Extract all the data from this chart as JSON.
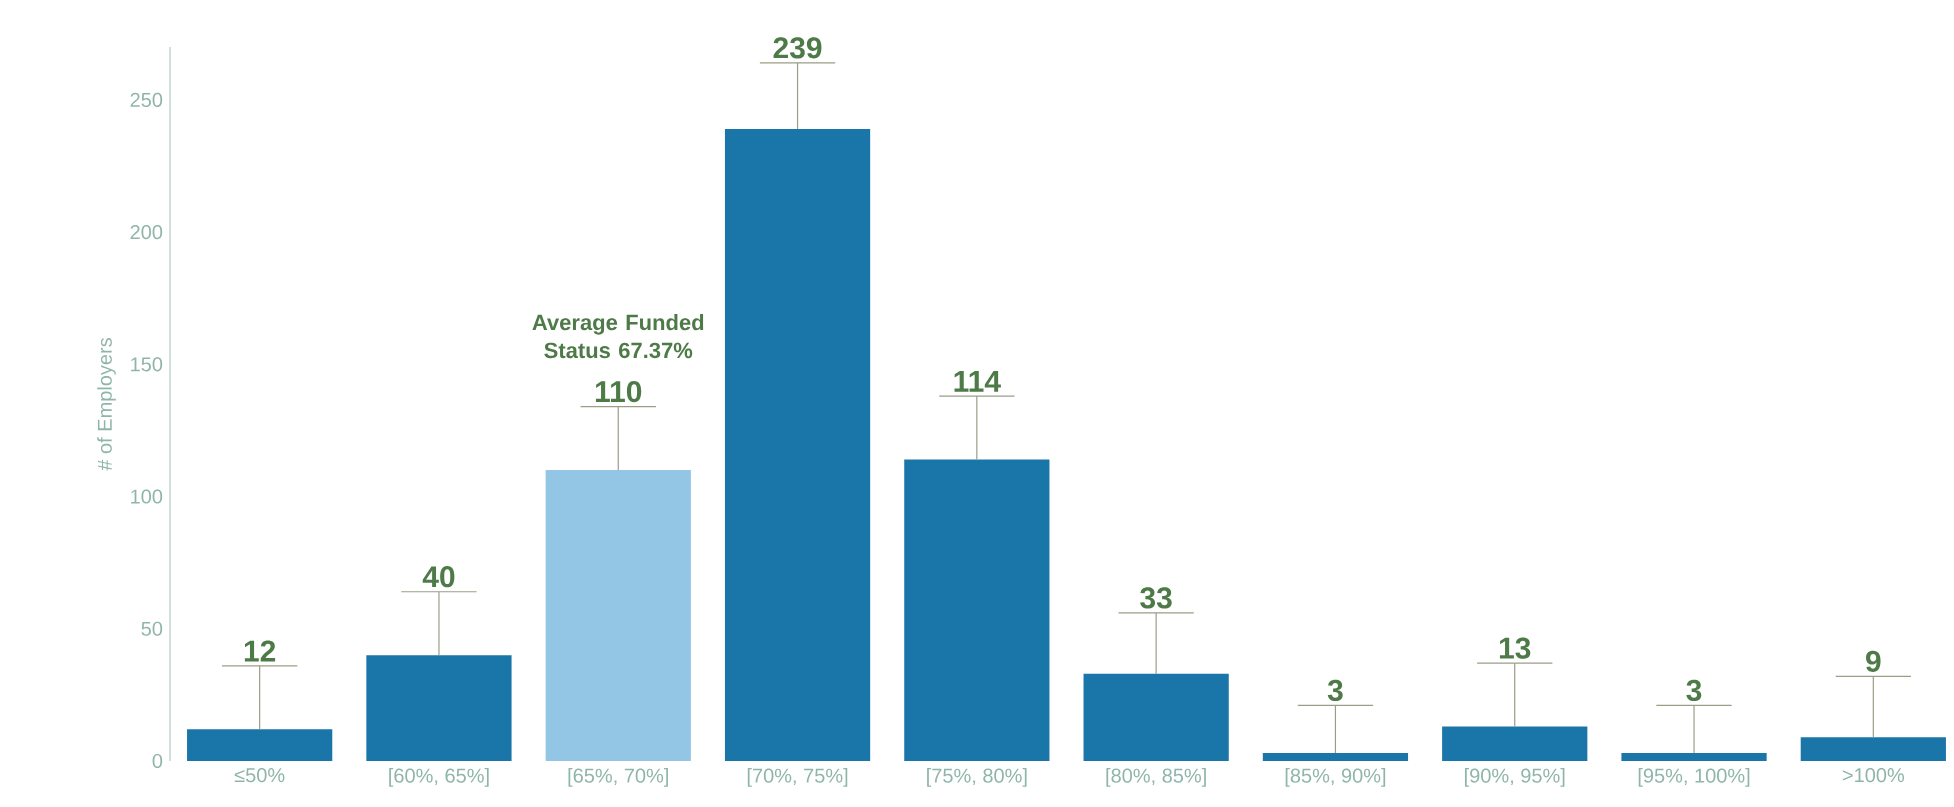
{
  "chart_data": {
    "type": "bar",
    "ylabel": "# of Employers",
    "categories": [
      "≤50%",
      "[60%, 65%]",
      "[65%, 70%]",
      "[70%, 75%]",
      "[75%, 80%]",
      "[80%, 85%]",
      "[85%, 90%]",
      "[90%, 95%]",
      "[95%, 100%]",
      ">100%"
    ],
    "values": [
      12,
      40,
      110,
      239,
      114,
      33,
      3,
      13,
      3,
      9
    ],
    "colors": [
      "#1a75a8",
      "#1a75a8",
      "#92c6e4",
      "#1a75a8",
      "#1a75a8",
      "#1a75a8",
      "#1a75a8",
      "#1a75a8",
      "#1a75a8",
      "#1a75a8"
    ],
    "errors": [
      [
        12,
        36
      ],
      [
        40,
        64
      ],
      [
        110,
        134
      ],
      [
        239,
        264
      ],
      [
        114,
        138
      ],
      [
        33,
        56
      ],
      [
        3,
        21
      ],
      [
        13,
        37
      ],
      [
        3,
        21
      ],
      [
        9,
        32
      ]
    ],
    "data_labels": true,
    "annotations": [
      "Average Funded Status 67.37%"
    ],
    "ylim": [
      0,
      270
    ],
    "yticks": [
      0,
      50,
      100,
      150,
      200,
      250
    ],
    "grid": false
  }
}
